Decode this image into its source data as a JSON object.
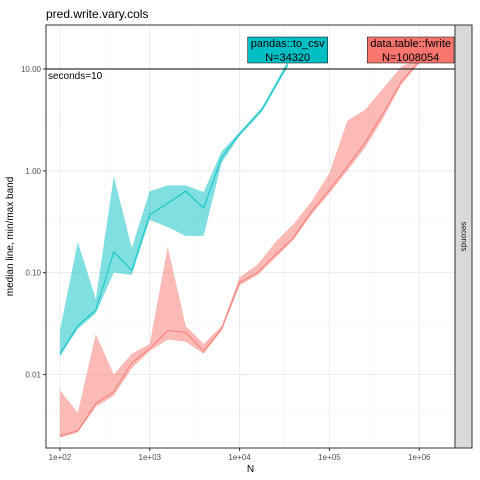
{
  "chart_data": {
    "type": "line",
    "title": "pred.write.vary.cols",
    "xlabel": "N",
    "ylabel": "median line, min/max band",
    "x_scale": "log",
    "y_scale": "log",
    "xlim": [
      70,
      2500000
    ],
    "ylim": [
      0.0019,
      27
    ],
    "x_ticks": [
      {
        "value": 100,
        "label": "1e+02"
      },
      {
        "value": 1000,
        "label": "1e+03"
      },
      {
        "value": 10000,
        "label": "1e+04"
      },
      {
        "value": 100000,
        "label": "1e+05"
      },
      {
        "value": 1000000,
        "label": "1e+06"
      }
    ],
    "y_ticks": [
      {
        "value": 0.01,
        "label": "0.01"
      },
      {
        "value": 0.1,
        "label": "0.10"
      },
      {
        "value": 1,
        "label": "1.00"
      },
      {
        "value": 10,
        "label": "10.00"
      }
    ],
    "grid": true,
    "strip_label": "seconds",
    "reference_line": {
      "y": 10,
      "label": "seconds=10"
    },
    "series": [
      {
        "name": "pandas::to_csv",
        "color": "#00BFC4",
        "label": "pandas::to_csv\nN=34320",
        "label_lines": [
          "pandas::to_csv",
          "N=34320"
        ],
        "label_x": 34320,
        "x": [
          100,
          158,
          251,
          398,
          631,
          1000,
          1585,
          2512,
          3981,
          6310,
          10000,
          17783,
          34320
        ],
        "median": [
          0.016,
          0.03,
          0.043,
          0.16,
          0.105,
          0.37,
          0.48,
          0.63,
          0.43,
          1.35,
          2.3,
          4.0,
          11
        ],
        "min": [
          0.015,
          0.028,
          0.04,
          0.1,
          0.095,
          0.33,
          0.28,
          0.23,
          0.23,
          1.2,
          2.2,
          3.8,
          10.5
        ],
        "max": [
          0.027,
          0.2,
          0.055,
          0.88,
          0.175,
          0.63,
          0.72,
          0.72,
          0.62,
          1.55,
          2.4,
          4.2,
          12
        ]
      },
      {
        "name": "data.table::fwrite",
        "color": "#F8766D",
        "label": "data.table::fwrite\nN=1008054",
        "label_lines": [
          "data.table::fwrite",
          "N=1008054"
        ],
        "label_x": 1008054,
        "x": [
          100,
          158,
          251,
          398,
          631,
          1000,
          1585,
          2512,
          3981,
          6310,
          10000,
          15849,
          25119,
          39811,
          63096,
          100000,
          158489,
          251189,
          398107,
          630957,
          1008054
        ],
        "median": [
          0.0025,
          0.0028,
          0.0052,
          0.0068,
          0.013,
          0.018,
          0.027,
          0.026,
          0.017,
          0.028,
          0.08,
          0.1,
          0.15,
          0.22,
          0.4,
          0.65,
          1.1,
          1.9,
          3.7,
          7.5,
          12
        ],
        "min": [
          0.0024,
          0.0027,
          0.0048,
          0.0062,
          0.0115,
          0.017,
          0.022,
          0.021,
          0.016,
          0.027,
          0.075,
          0.095,
          0.14,
          0.21,
          0.37,
          0.6,
          1.0,
          1.7,
          3.3,
          7.0,
          11.5
        ],
        "max": [
          0.007,
          0.0042,
          0.025,
          0.01,
          0.016,
          0.02,
          0.18,
          0.03,
          0.02,
          0.03,
          0.09,
          0.12,
          0.2,
          0.3,
          0.5,
          0.95,
          3.1,
          4.0,
          6.5,
          10.5,
          13
        ]
      }
    ]
  }
}
